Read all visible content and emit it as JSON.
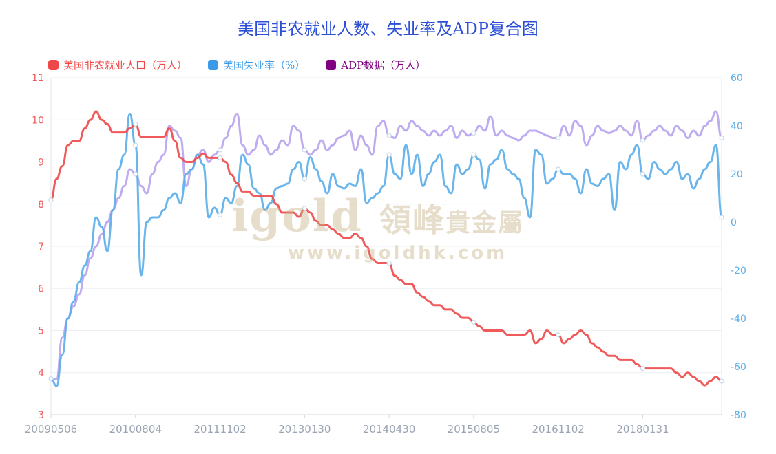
{
  "title": "美国非农就业人数、失业率及ADP复合图",
  "legend": [
    {
      "label": "美国非农就业人口（万人）",
      "color": "#f04848"
    },
    {
      "label": "美国失业率（%）",
      "color": "#3b9be8"
    },
    {
      "label": "ADP数据（万人）",
      "color": "#800080"
    }
  ],
  "watermark": {
    "text": "igold",
    "cn_text": "領峰",
    "cn_small": "貴金屬",
    "url": "www.igoldhk.com"
  },
  "colors": {
    "nonfarm": "#f04848",
    "unemployment": "#5aaeea",
    "adp": "#b8a2ee",
    "left_axis": "#f0595b",
    "right_axis": "#5aaeea",
    "x_axis": "#9aa4b2"
  },
  "chart_data": {
    "type": "line",
    "title": "美国非农就业人数、失业率及ADP复合图",
    "x_tick_labels": [
      "20090506",
      "20100804",
      "20111102",
      "20130130",
      "20140430",
      "20150805",
      "20161102",
      "20180131"
    ],
    "x_tick_index": [
      0,
      15,
      30,
      45,
      60,
      75,
      90,
      105
    ],
    "x_count": 120,
    "y_left": {
      "min": 3,
      "max": 11,
      "ticks": [
        "3",
        "4",
        "5",
        "6",
        "7",
        "8",
        "9",
        "10",
        "11"
      ]
    },
    "y_right": {
      "min": -80,
      "max": 60,
      "ticks": [
        "-80",
        "-60",
        "-40",
        "-20",
        "0",
        "20",
        "40",
        "60"
      ]
    },
    "grid": true,
    "legend_position": "top-left",
    "series": [
      {
        "name": "美国非农就业人口（万人）",
        "axis": "left",
        "values": [
          8.1,
          8.6,
          8.9,
          9.4,
          9.5,
          9.5,
          9.8,
          10.0,
          10.2,
          10.0,
          9.9,
          9.7,
          9.7,
          9.7,
          9.8,
          9.9,
          9.6,
          9.6,
          9.6,
          9.6,
          9.6,
          9.8,
          9.5,
          9.1,
          9.0,
          9.0,
          9.1,
          9.2,
          9.1,
          9.1,
          9.1,
          9.0,
          8.7,
          8.5,
          8.3,
          8.3,
          8.2,
          8.2,
          8.2,
          8.2,
          8.0,
          7.8,
          7.8,
          7.8,
          7.7,
          7.9,
          7.8,
          7.6,
          7.5,
          7.5,
          7.4,
          7.3,
          7.2,
          7.2,
          7.3,
          7.2,
          7.0,
          6.7,
          6.6,
          6.6,
          6.6,
          6.3,
          6.2,
          6.1,
          6.1,
          5.9,
          5.8,
          5.7,
          5.6,
          5.6,
          5.5,
          5.5,
          5.4,
          5.3,
          5.3,
          5.2,
          5.1,
          5.0,
          5.0,
          5.0,
          5.0,
          4.9,
          4.9,
          4.9,
          4.9,
          5.0,
          4.7,
          4.8,
          5.0,
          4.9,
          4.9,
          4.7,
          4.8,
          4.9,
          5.0,
          4.9,
          4.7,
          4.6,
          4.5,
          4.4,
          4.4,
          4.3,
          4.3,
          4.3,
          4.2,
          4.1,
          4.1,
          4.1,
          4.1,
          4.1,
          4.1,
          4.0,
          3.9,
          4.0,
          3.9,
          3.8,
          3.7,
          3.8,
          3.9,
          3.8
        ]
      },
      {
        "name": "美国失业率（%）",
        "axis": "right",
        "values": [
          -65,
          -68,
          -55,
          -40,
          -33,
          -25,
          -18,
          -12,
          2,
          -2,
          -12,
          5,
          22,
          28,
          45,
          32,
          -22,
          0,
          2,
          2,
          5,
          10,
          12,
          8,
          20,
          22,
          28,
          24,
          2,
          6,
          3,
          10,
          8,
          15,
          28,
          24,
          14,
          12,
          5,
          8,
          14,
          15,
          16,
          22,
          25,
          18,
          27,
          22,
          17,
          12,
          20,
          15,
          14,
          16,
          15,
          22,
          8,
          10,
          12,
          15,
          28,
          20,
          18,
          32,
          20,
          28,
          15,
          20,
          25,
          28,
          15,
          12,
          24,
          20,
          22,
          28,
          26,
          14,
          24,
          26,
          30,
          22,
          20,
          18,
          10,
          2,
          30,
          28,
          16,
          18,
          22,
          20,
          20,
          18,
          12,
          22,
          16,
          15,
          18,
          20,
          5,
          25,
          22,
          28,
          32,
          20,
          18,
          25,
          22,
          20,
          22,
          25,
          18,
          20,
          14,
          18,
          22,
          25,
          32,
          2
        ]
      },
      {
        "name": "ADP数据（万人）",
        "axis": "right",
        "values": [
          -65,
          -65,
          -48,
          -40,
          -35,
          -30,
          -22,
          -15,
          -10,
          -5,
          0,
          5,
          10,
          15,
          22,
          20,
          15,
          12,
          20,
          25,
          28,
          40,
          38,
          35,
          15,
          22,
          28,
          30,
          25,
          28,
          30,
          35,
          40,
          45,
          32,
          28,
          30,
          36,
          32,
          28,
          30,
          34,
          32,
          40,
          38,
          30,
          28,
          30,
          34,
          30,
          32,
          35,
          36,
          38,
          30,
          36,
          32,
          28,
          40,
          42,
          36,
          35,
          40,
          38,
          42,
          40,
          38,
          36,
          38,
          36,
          38,
          40,
          35,
          38,
          36,
          37,
          40,
          38,
          44,
          36,
          38,
          36,
          35,
          34,
          36,
          38,
          38,
          37,
          36,
          35,
          35,
          40,
          36,
          42,
          40,
          32,
          36,
          40,
          38,
          37,
          38,
          40,
          38,
          36,
          42,
          34,
          36,
          38,
          40,
          38,
          36,
          40,
          38,
          35,
          38,
          36,
          40,
          42,
          46,
          35
        ]
      }
    ]
  }
}
